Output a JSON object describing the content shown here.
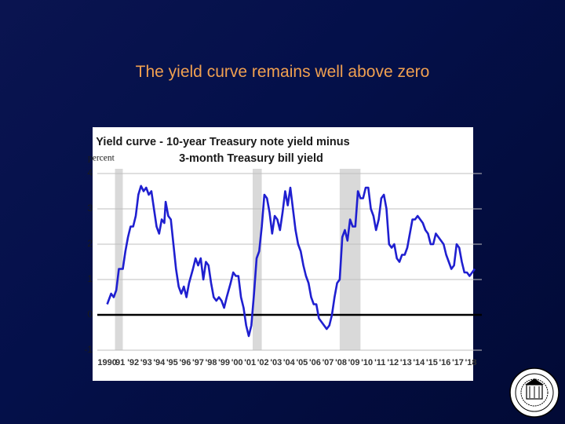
{
  "title": "The yield curve remains well above zero",
  "chart_data": {
    "type": "line",
    "title": "Yield curve - 10-year Treasury note yield minus",
    "subtitle": "3-month Treasury bill yield",
    "ylabel": "percent",
    "xlim": [
      1989.6,
      2018.6
    ],
    "ylim": [
      -1,
      4
    ],
    "yticks": [
      -1,
      0,
      1,
      2,
      3,
      4
    ],
    "xticks": [
      {
        "value": 1990,
        "label": "1990"
      },
      {
        "value": 1991,
        "label": "91"
      },
      {
        "value": 1992,
        "label": "'92"
      },
      {
        "value": 1993,
        "label": "'93"
      },
      {
        "value": 1994,
        "label": "'94"
      },
      {
        "value": 1995,
        "label": "'95"
      },
      {
        "value": 1996,
        "label": "'96"
      },
      {
        "value": 1997,
        "label": "'97"
      },
      {
        "value": 1998,
        "label": "'98"
      },
      {
        "value": 1999,
        "label": "'99"
      },
      {
        "value": 2000,
        "label": "'00"
      },
      {
        "value": 2001,
        "label": "'01"
      },
      {
        "value": 2002,
        "label": "'02"
      },
      {
        "value": 2003,
        "label": "'03"
      },
      {
        "value": 2004,
        "label": "'04"
      },
      {
        "value": 2005,
        "label": "'05"
      },
      {
        "value": 2006,
        "label": "'06"
      },
      {
        "value": 2007,
        "label": "'07"
      },
      {
        "value": 2008,
        "label": "'08"
      },
      {
        "value": 2009,
        "label": "'09"
      },
      {
        "value": 2010,
        "label": "'10"
      },
      {
        "value": 2011,
        "label": "'11"
      },
      {
        "value": 2012,
        "label": "'12"
      },
      {
        "value": 2013,
        "label": "'13"
      },
      {
        "value": 2014,
        "label": "'14"
      },
      {
        "value": 2015,
        "label": "'15"
      },
      {
        "value": 2016,
        "label": "'16"
      },
      {
        "value": 2017,
        "label": "'17"
      },
      {
        "value": 2018,
        "label": "'18"
      }
    ],
    "grid": true,
    "recessions": [
      [
        1990.6,
        1991.2
      ],
      [
        2001.2,
        2001.9
      ],
      [
        2007.9,
        2009.5
      ]
    ],
    "recession_color": "#d9d9d9",
    "zero_line": 0,
    "color": "#1f1fd0",
    "x": [
      1990.0,
      1990.3,
      1990.5,
      1990.7,
      1990.9,
      1991.2,
      1991.4,
      1991.6,
      1991.8,
      1992.0,
      1992.2,
      1992.4,
      1992.6,
      1992.8,
      1993.0,
      1993.2,
      1993.4,
      1993.6,
      1993.8,
      1994.0,
      1994.2,
      1994.4,
      1994.5,
      1994.7,
      1994.9,
      1995.1,
      1995.3,
      1995.5,
      1995.7,
      1995.9,
      1996.1,
      1996.3,
      1996.6,
      1996.8,
      1997.0,
      1997.2,
      1997.4,
      1997.6,
      1997.8,
      1998.0,
      1998.2,
      1998.4,
      1998.6,
      1998.8,
      1999.0,
      1999.2,
      1999.5,
      1999.7,
      1999.9,
      2000.1,
      2000.3,
      2000.5,
      2000.7,
      2000.9,
      2001.1,
      2001.3,
      2001.5,
      2001.7,
      2001.9,
      2002.1,
      2002.3,
      2002.5,
      2002.7,
      2002.9,
      2003.1,
      2003.3,
      2003.5,
      2003.7,
      2003.9,
      2004.1,
      2004.3,
      2004.5,
      2004.7,
      2004.9,
      2005.1,
      2005.3,
      2005.5,
      2005.7,
      2005.9,
      2006.1,
      2006.3,
      2006.5,
      2006.7,
      2006.9,
      2007.1,
      2007.3,
      2007.5,
      2007.7,
      2007.9,
      2008.1,
      2008.3,
      2008.5,
      2008.7,
      2008.9,
      2009.1,
      2009.3,
      2009.5,
      2009.7,
      2009.9,
      2010.1,
      2010.3,
      2010.5,
      2010.7,
      2010.9,
      2011.1,
      2011.3,
      2011.5,
      2011.7,
      2011.9,
      2012.1,
      2012.3,
      2012.5,
      2012.7,
      2012.9,
      2013.1,
      2013.3,
      2013.5,
      2013.7,
      2013.9,
      2014.1,
      2014.3,
      2014.5,
      2014.7,
      2014.9,
      2015.1,
      2015.3,
      2015.5,
      2015.7,
      2015.9,
      2016.1,
      2016.3,
      2016.5,
      2016.7,
      2016.9,
      2017.1,
      2017.3,
      2017.5,
      2017.7,
      2017.9,
      2018.1,
      2018.3
    ],
    "values": [
      0.3,
      0.6,
      0.5,
      0.7,
      1.3,
      1.3,
      1.8,
      2.2,
      2.5,
      2.5,
      2.8,
      3.4,
      3.65,
      3.5,
      3.6,
      3.4,
      3.5,
      3.0,
      2.5,
      2.3,
      2.7,
      2.6,
      3.2,
      2.8,
      2.7,
      2.0,
      1.3,
      0.8,
      0.6,
      0.8,
      0.5,
      0.9,
      1.3,
      1.6,
      1.4,
      1.6,
      1.0,
      1.5,
      1.4,
      0.9,
      0.5,
      0.4,
      0.5,
      0.4,
      0.2,
      0.5,
      0.9,
      1.2,
      1.1,
      1.1,
      0.5,
      0.2,
      -0.3,
      -0.6,
      -0.3,
      0.6,
      1.6,
      1.8,
      2.5,
      3.4,
      3.3,
      2.9,
      2.3,
      2.8,
      2.7,
      2.4,
      2.9,
      3.5,
      3.1,
      3.6,
      3.0,
      2.4,
      2.0,
      1.8,
      1.4,
      1.1,
      0.9,
      0.5,
      0.3,
      0.3,
      -0.1,
      -0.2,
      -0.3,
      -0.4,
      -0.3,
      0.0,
      0.5,
      0.9,
      1.0,
      2.2,
      2.4,
      2.1,
      2.7,
      2.5,
      2.5,
      3.5,
      3.3,
      3.3,
      3.6,
      3.6,
      3.0,
      2.8,
      2.4,
      2.7,
      3.3,
      3.4,
      3.0,
      2.0,
      1.9,
      2.0,
      1.6,
      1.5,
      1.7,
      1.7,
      1.9,
      2.3,
      2.7,
      2.7,
      2.8,
      2.7,
      2.6,
      2.4,
      2.3,
      2.0,
      2.0,
      2.3,
      2.2,
      2.1,
      2.0,
      1.7,
      1.5,
      1.3,
      1.4,
      2.0,
      1.9,
      1.5,
      1.2,
      1.2,
      1.1,
      1.2,
      1.3
    ]
  }
}
